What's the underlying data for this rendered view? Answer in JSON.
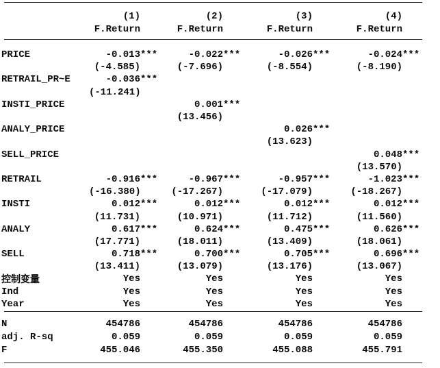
{
  "table": {
    "model_numbers": [
      "(1)",
      "(2)",
      "(3)",
      "(4)"
    ],
    "dep_vars": [
      "F.Return",
      "F.Return",
      "F.Return",
      "F.Return"
    ],
    "lines": [
      {
        "label": "PRICE",
        "cells": [
          "-0.013***",
          "-0.022***",
          "-0.026***",
          "-0.024***"
        ]
      },
      {
        "label": "",
        "cells": [
          "(-4.585)",
          "(-7.696)",
          "(-8.554)",
          "(-8.190)"
        ]
      },
      {
        "label": "RETRAIL_PR~E",
        "cells": [
          "-0.036***",
          "",
          "",
          ""
        ]
      },
      {
        "label": "",
        "cells": [
          "(-11.241)",
          "",
          "",
          ""
        ]
      },
      {
        "label": "INSTI_PRICE",
        "cells": [
          "",
          "0.001***",
          "",
          ""
        ]
      },
      {
        "label": "",
        "cells": [
          "",
          "(13.456)",
          "",
          ""
        ]
      },
      {
        "label": "ANALY_PRICE",
        "cells": [
          "",
          "",
          "0.026***",
          ""
        ]
      },
      {
        "label": "",
        "cells": [
          "",
          "",
          "(13.623)",
          ""
        ]
      },
      {
        "label": "SELL_PRICE",
        "cells": [
          "",
          "",
          "",
          "0.048***"
        ]
      },
      {
        "label": "",
        "cells": [
          "",
          "",
          "",
          "(13.570)"
        ]
      },
      {
        "label": "RETRAIL",
        "cells": [
          "-0.916***",
          "-0.967***",
          "-0.957***",
          "-1.023***"
        ]
      },
      {
        "label": "",
        "cells": [
          "(-16.380)",
          "(-17.267)",
          "(-17.079)",
          "(-18.267)"
        ]
      },
      {
        "label": "INSTI",
        "cells": [
          "0.012***",
          "0.012***",
          "0.012***",
          "0.012***"
        ]
      },
      {
        "label": "",
        "cells": [
          "(11.731)",
          "(10.971)",
          "(11.712)",
          "(11.560)"
        ]
      },
      {
        "label": "ANALY",
        "cells": [
          "0.617***",
          "0.624***",
          "0.475***",
          "0.626***"
        ]
      },
      {
        "label": "",
        "cells": [
          "(17.771)",
          "(18.011)",
          "(13.409)",
          "(18.061)"
        ]
      },
      {
        "label": "SELL",
        "cells": [
          "0.718***",
          "0.700***",
          "0.705***",
          "0.696***"
        ]
      },
      {
        "label": "",
        "cells": [
          "(13.411)",
          "(13.079)",
          "(13.176)",
          "(13.067)"
        ]
      },
      {
        "label": "控制变量",
        "cells": [
          "Yes",
          "Yes",
          "Yes",
          "Yes"
        ]
      },
      {
        "label": "Ind",
        "cells": [
          "Yes",
          "Yes",
          "Yes",
          "Yes"
        ]
      },
      {
        "label": "Year",
        "cells": [
          "Yes",
          "Yes",
          "Yes",
          "Yes"
        ]
      }
    ],
    "stats": [
      {
        "label": "N",
        "cells": [
          "454786",
          "454786",
          "454786",
          "454786"
        ]
      },
      {
        "label": "adj. R-sq",
        "cells": [
          "0.059",
          "0.059",
          "0.059",
          "0.059"
        ]
      },
      {
        "label": "F",
        "cells": [
          "455.046",
          "455.350",
          "455.088",
          "455.791"
        ]
      }
    ]
  },
  "colors": {
    "text": "#0a0a0a",
    "rule": "#1f1f1f",
    "background": "#ffffff"
  }
}
